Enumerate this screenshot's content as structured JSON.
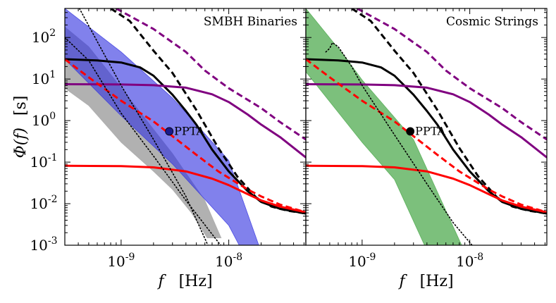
{
  "chart_data": [
    {
      "type": "line",
      "panel": "left",
      "title": "SMBH Binaries",
      "xlabel_symbol": "f",
      "xlabel_unit": "[Hz]",
      "ylabel_symbol": "Φ(f)",
      "ylabel_unit": "[s]",
      "xscale": "log",
      "yscale": "log",
      "xlim": [
        3e-10,
        5.2e-08
      ],
      "ylim": [
        0.001,
        500
      ],
      "x_ticks": [
        1e-09,
        1e-08
      ],
      "x_tick_labels": [
        {
          "base": "10",
          "exp": "-9"
        },
        {
          "base": "10",
          "exp": "-8"
        }
      ],
      "y_ticks": [
        0.001,
        0.01,
        0.1,
        1,
        10,
        100
      ],
      "y_tick_labels": [
        {
          "base": "10",
          "exp": "-3"
        },
        {
          "base": "10",
          "exp": "-2"
        },
        {
          "base": "10",
          "exp": "-1"
        },
        {
          "base": "10",
          "exp": "0"
        },
        {
          "base": "10",
          "exp": "1"
        },
        {
          "base": "10",
          "exp": "2"
        }
      ],
      "bands": [
        {
          "name": "gray band",
          "color": "#a9a9a9",
          "opacity": 0.9,
          "upper": [
            [
              3e-10,
              180
            ],
            [
              5e-10,
              60
            ],
            [
              8e-10,
              13
            ],
            [
              1.5e-09,
              1.6
            ],
            [
              3e-09,
              0.16
            ],
            [
              6e-09,
              0.012
            ],
            [
              8.5e-09,
              0.0015
            ]
          ],
          "lower": [
            [
              3e-10,
              6
            ],
            [
              5e-10,
              2.3
            ],
            [
              1e-09,
              0.3
            ],
            [
              2e-09,
              0.06
            ],
            [
              3e-09,
              0.022
            ],
            [
              4.5e-09,
              0.006
            ],
            [
              6.3e-09,
              0.0015
            ]
          ]
        },
        {
          "name": "blue band",
          "color": "#3434e0",
          "opacity": 0.62,
          "upper": [
            [
              3e-10,
              500
            ],
            [
              1e-09,
              45
            ],
            [
              3e-09,
              3.5
            ],
            [
              1e-08,
              0.11
            ],
            [
              1.9e-08,
              0.001
            ]
          ],
          "lower": [
            [
              3e-10,
              30
            ],
            [
              1e-09,
              1.3
            ],
            [
              3e-09,
              0.09
            ],
            [
              1e-08,
              0.003
            ],
            [
              1.25e-08,
              0.001
            ]
          ]
        }
      ],
      "series": [
        {
          "name": "black dashed",
          "color": "#000000",
          "style": "dashed",
          "x": [
            8e-10,
            1.2e-09,
            2e-09,
            3e-09,
            5e-09,
            8e-09,
            1.2e-08,
            1.8e-08,
            2.5e-08,
            3.5e-08,
            5.2e-08
          ],
          "y": [
            500,
            250,
            48,
            14,
            1.8,
            0.22,
            0.045,
            0.014,
            0.0085,
            0.0068,
            0.0058
          ]
        },
        {
          "name": "black solid",
          "color": "#000000",
          "style": "solid",
          "x": [
            3e-10,
            6e-10,
            1e-09,
            1.5e-09,
            2e-09,
            3e-09,
            4e-09,
            5e-09,
            7e-09,
            1e-08,
            1.5e-08,
            2e-08,
            3e-08,
            5.2e-08
          ],
          "y": [
            30,
            28,
            25,
            19,
            12,
            4.2,
            1.7,
            0.8,
            0.2,
            0.06,
            0.02,
            0.011,
            0.0075,
            0.0058
          ]
        },
        {
          "name": "purple dashed",
          "color": "#800080",
          "style": "dashed",
          "x": [
            9e-10,
            2e-09,
            4e-09,
            6e-09,
            1e-08,
            2e-08,
            3e-08,
            5.2e-08
          ],
          "y": [
            500,
            160,
            45,
            16,
            6,
            2,
            0.92,
            0.35
          ]
        },
        {
          "name": "purple solid",
          "color": "#800080",
          "style": "solid",
          "x": [
            3e-10,
            1e-09,
            2e-09,
            4e-09,
            7e-09,
            1e-08,
            1.5e-08,
            2e-08,
            3e-08,
            5.2e-08
          ],
          "y": [
            7.5,
            7.4,
            7.1,
            6.2,
            4.3,
            2.8,
            1.4,
            0.8,
            0.4,
            0.13
          ]
        },
        {
          "name": "red dashed",
          "color": "#ff0000",
          "style": "dashed",
          "x": [
            3e-10,
            5e-10,
            1e-09,
            2e-09,
            3e-09,
            5e-09,
            8e-09,
            1e-08,
            1.5e-08,
            2e-08,
            3e-08,
            5.2e-08
          ],
          "y": [
            30,
            11,
            3,
            0.95,
            0.42,
            0.15,
            0.06,
            0.042,
            0.022,
            0.015,
            0.0095,
            0.0062
          ]
        },
        {
          "name": "red solid",
          "color": "#ff0000",
          "style": "solid",
          "x": [
            3e-10,
            1e-09,
            2e-09,
            4e-09,
            7e-09,
            1e-08,
            1.5e-08,
            2e-08,
            3e-08,
            5.2e-08
          ],
          "y": [
            0.082,
            0.08,
            0.075,
            0.06,
            0.04,
            0.028,
            0.017,
            0.012,
            0.0085,
            0.0062
          ]
        },
        {
          "name": "dotted center",
          "color": "#000000",
          "style": "dotted",
          "x": [
            4.1e-10,
            6e-10,
            1e-09,
            2e-09,
            4e-09,
            6.4e-09
          ],
          "y": [
            500,
            80,
            7,
            0.35,
            0.015,
            0.001
          ]
        },
        {
          "name": "dotted lower",
          "color": "#000000",
          "style": "dotted",
          "x": [
            3e-10,
            5e-10,
            1e-09,
            2e-09,
            4e-09,
            8.4e-09
          ],
          "y": [
            100,
            28,
            1.5,
            0.14,
            0.012,
            0.001
          ]
        }
      ],
      "point": {
        "label": "PPTA",
        "x": 2.8e-09,
        "y": 0.55,
        "color": "#1a1a8c"
      }
    },
    {
      "type": "line",
      "panel": "right",
      "title": "Cosmic Strings",
      "xlabel_symbol": "f",
      "xlabel_unit": "[Hz]",
      "xscale": "log",
      "yscale": "log",
      "xlim": [
        3e-10,
        5.2e-08
      ],
      "ylim": [
        0.001,
        500
      ],
      "x_ticks": [
        1e-09,
        1e-08
      ],
      "x_tick_labels": [
        {
          "base": "10",
          "exp": "-9"
        },
        {
          "base": "10",
          "exp": "-8"
        }
      ],
      "bands": [
        {
          "name": "green band",
          "color": "#4aa84a",
          "opacity": 0.72,
          "upper": [
            [
              3e-10,
              500
            ],
            [
              6.9e-10,
              35
            ],
            [
              1e-09,
              9.5
            ],
            [
              3e-09,
              0.35
            ],
            [
              8.4e-09,
              0.001
            ]
          ],
          "lower": [
            [
              3e-10,
              15
            ],
            [
              1e-09,
              0.3
            ],
            [
              2e-09,
              0.038
            ],
            [
              3.8e-09,
              0.001
            ]
          ]
        }
      ],
      "series": [
        {
          "name": "black dashed",
          "color": "#000000",
          "style": "dashed",
          "x": [
            8e-10,
            1.2e-09,
            2e-09,
            3e-09,
            5e-09,
            8e-09,
            1.2e-08,
            1.8e-08,
            2.5e-08,
            3.5e-08,
            5.2e-08
          ],
          "y": [
            500,
            250,
            48,
            14,
            1.8,
            0.22,
            0.045,
            0.014,
            0.0085,
            0.0068,
            0.0058
          ]
        },
        {
          "name": "black solid",
          "color": "#000000",
          "style": "solid",
          "x": [
            3e-10,
            6e-10,
            1e-09,
            1.5e-09,
            2e-09,
            3e-09,
            4e-09,
            5e-09,
            7e-09,
            1e-08,
            1.5e-08,
            2e-08,
            3e-08,
            5.2e-08
          ],
          "y": [
            30,
            28,
            25,
            19,
            12,
            4.2,
            1.7,
            0.8,
            0.2,
            0.06,
            0.02,
            0.011,
            0.0075,
            0.0058
          ]
        },
        {
          "name": "purple dashed",
          "color": "#800080",
          "style": "dashed",
          "x": [
            9e-10,
            2e-09,
            4e-09,
            6e-09,
            1e-08,
            2e-08,
            3e-08,
            5.2e-08
          ],
          "y": [
            500,
            160,
            45,
            16,
            6,
            2,
            0.92,
            0.35
          ]
        },
        {
          "name": "purple solid",
          "color": "#800080",
          "style": "solid",
          "x": [
            3e-10,
            1e-09,
            2e-09,
            4e-09,
            7e-09,
            1e-08,
            1.5e-08,
            2e-08,
            3e-08,
            5.2e-08
          ],
          "y": [
            7.5,
            7.4,
            7.1,
            6.2,
            4.3,
            2.8,
            1.4,
            0.8,
            0.4,
            0.13
          ]
        },
        {
          "name": "red dashed",
          "color": "#ff0000",
          "style": "dashed",
          "x": [
            3e-10,
            5e-10,
            1e-09,
            2e-09,
            3e-09,
            5e-09,
            8e-09,
            1e-08,
            1.5e-08,
            2e-08,
            3e-08,
            5.2e-08
          ],
          "y": [
            30,
            11,
            3,
            0.95,
            0.42,
            0.15,
            0.06,
            0.042,
            0.022,
            0.015,
            0.0095,
            0.0062
          ]
        },
        {
          "name": "red solid",
          "color": "#ff0000",
          "style": "solid",
          "x": [
            3e-10,
            1e-09,
            2e-09,
            4e-09,
            7e-09,
            1e-08,
            1.5e-08,
            2e-08,
            3e-08,
            5.2e-08
          ],
          "y": [
            0.082,
            0.08,
            0.075,
            0.06,
            0.04,
            0.028,
            0.017,
            0.012,
            0.0085,
            0.0062
          ]
        },
        {
          "name": "dotted green-center",
          "color": "#000000",
          "style": "dotted",
          "x": [
            4.6e-10,
            5e-10,
            5.3e-10,
            6e-10,
            8e-10,
            1e-09,
            2e-09,
            4e-09,
            7e-09,
            1.05e-08
          ],
          "y": [
            45,
            55,
            75,
            60,
            20,
            7,
            0.45,
            0.03,
            0.0035,
            0.001
          ]
        }
      ],
      "point": {
        "label": "PPTA",
        "x": 2.8e-09,
        "y": 0.55,
        "color": "#000000"
      }
    }
  ]
}
